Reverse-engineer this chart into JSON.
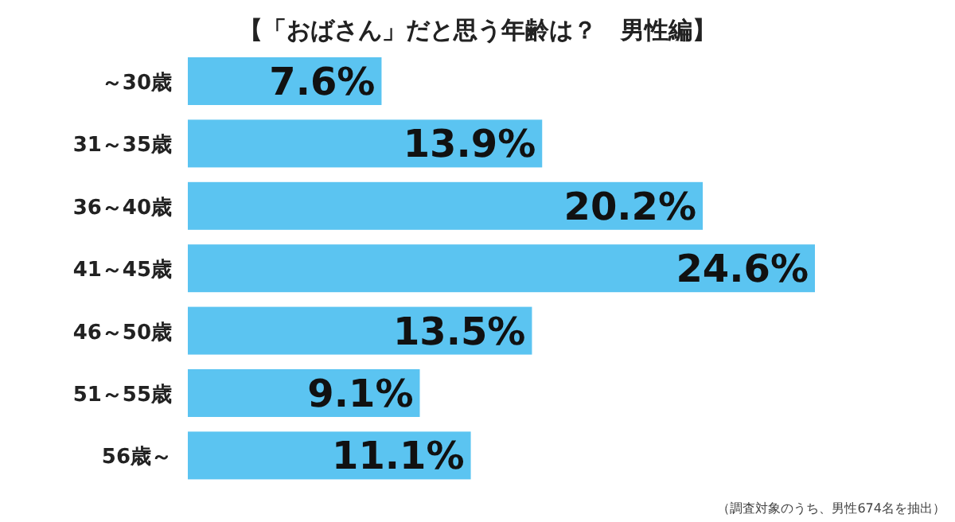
{
  "chart_data": {
    "type": "bar",
    "orientation": "horizontal",
    "title": "【「おばさん」だと思う年齢は？　男性編】",
    "categories": [
      "～30歳",
      "31～35歳",
      "36～40歳",
      "41～45歳",
      "46～50歳",
      "51～55歳",
      "56歳～"
    ],
    "values": [
      7.6,
      13.9,
      20.2,
      24.6,
      13.5,
      9.1,
      11.1
    ],
    "value_labels": [
      "7.6%",
      "13.9%",
      "20.2%",
      "24.6%",
      "13.5%",
      "9.1%",
      "11.1%"
    ],
    "color": "#5bc4f1",
    "annotations": [
      "（調査対象のうち、男性674名を抽出）"
    ]
  }
}
